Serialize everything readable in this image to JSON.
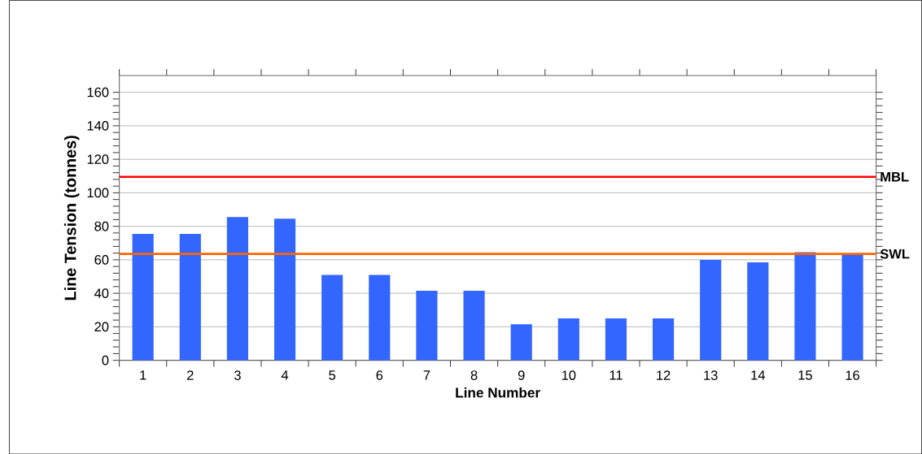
{
  "chart_data": {
    "type": "bar",
    "xlabel": "Line Number",
    "ylabel": "Line Tension (tonnes)",
    "categories": [
      "1",
      "2",
      "3",
      "4",
      "5",
      "6",
      "7",
      "8",
      "9",
      "10",
      "11",
      "12",
      "13",
      "14",
      "15",
      "16"
    ],
    "values": [
      75.5,
      75.5,
      85.5,
      84.5,
      51,
      51,
      41.5,
      41.5,
      21.5,
      25,
      25,
      25,
      60,
      58.5,
      64.5,
      63
    ],
    "color": "#3366ff",
    "ylim": [
      0,
      170
    ],
    "yticks": [
      0,
      20,
      40,
      60,
      80,
      100,
      120,
      140,
      160
    ],
    "grid": "y",
    "ref_lines": [
      {
        "axis": "y",
        "value": 109.5,
        "label": "MBL",
        "color": "#ff0000"
      },
      {
        "axis": "y",
        "value": 63.5,
        "label": "SWL",
        "color": "#ff6600"
      }
    ]
  }
}
